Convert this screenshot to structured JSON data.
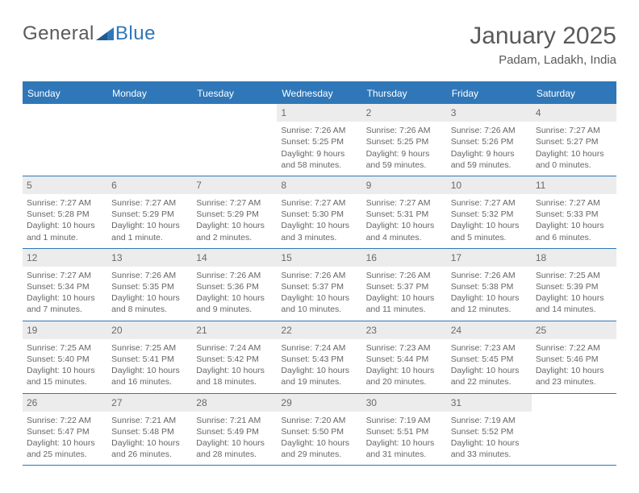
{
  "logo": {
    "text1": "General",
    "text2": "Blue"
  },
  "title": "January 2025",
  "location": "Padam, Ladakh, India",
  "colors": {
    "accent": "#2f77b8",
    "header_text": "#ffffff",
    "daynum_bg": "#ececec",
    "body_text": "#666666",
    "background": "#ffffff"
  },
  "typography": {
    "title_fontsize": 30,
    "location_fontsize": 15,
    "dayhdr_fontsize": 12,
    "cell_fontsize": 10.5
  },
  "day_headers": [
    "Sunday",
    "Monday",
    "Tuesday",
    "Wednesday",
    "Thursday",
    "Friday",
    "Saturday"
  ],
  "weeks": [
    [
      {
        "n": "",
        "empty": true
      },
      {
        "n": "",
        "empty": true
      },
      {
        "n": "",
        "empty": true
      },
      {
        "n": "1",
        "sr": "Sunrise: 7:26 AM",
        "ss": "Sunset: 5:25 PM",
        "d1": "Daylight: 9 hours",
        "d2": "and 58 minutes."
      },
      {
        "n": "2",
        "sr": "Sunrise: 7:26 AM",
        "ss": "Sunset: 5:25 PM",
        "d1": "Daylight: 9 hours",
        "d2": "and 59 minutes."
      },
      {
        "n": "3",
        "sr": "Sunrise: 7:26 AM",
        "ss": "Sunset: 5:26 PM",
        "d1": "Daylight: 9 hours",
        "d2": "and 59 minutes."
      },
      {
        "n": "4",
        "sr": "Sunrise: 7:27 AM",
        "ss": "Sunset: 5:27 PM",
        "d1": "Daylight: 10 hours",
        "d2": "and 0 minutes."
      }
    ],
    [
      {
        "n": "5",
        "sr": "Sunrise: 7:27 AM",
        "ss": "Sunset: 5:28 PM",
        "d1": "Daylight: 10 hours",
        "d2": "and 1 minute."
      },
      {
        "n": "6",
        "sr": "Sunrise: 7:27 AM",
        "ss": "Sunset: 5:29 PM",
        "d1": "Daylight: 10 hours",
        "d2": "and 1 minute."
      },
      {
        "n": "7",
        "sr": "Sunrise: 7:27 AM",
        "ss": "Sunset: 5:29 PM",
        "d1": "Daylight: 10 hours",
        "d2": "and 2 minutes."
      },
      {
        "n": "8",
        "sr": "Sunrise: 7:27 AM",
        "ss": "Sunset: 5:30 PM",
        "d1": "Daylight: 10 hours",
        "d2": "and 3 minutes."
      },
      {
        "n": "9",
        "sr": "Sunrise: 7:27 AM",
        "ss": "Sunset: 5:31 PM",
        "d1": "Daylight: 10 hours",
        "d2": "and 4 minutes."
      },
      {
        "n": "10",
        "sr": "Sunrise: 7:27 AM",
        "ss": "Sunset: 5:32 PM",
        "d1": "Daylight: 10 hours",
        "d2": "and 5 minutes."
      },
      {
        "n": "11",
        "sr": "Sunrise: 7:27 AM",
        "ss": "Sunset: 5:33 PM",
        "d1": "Daylight: 10 hours",
        "d2": "and 6 minutes."
      }
    ],
    [
      {
        "n": "12",
        "sr": "Sunrise: 7:27 AM",
        "ss": "Sunset: 5:34 PM",
        "d1": "Daylight: 10 hours",
        "d2": "and 7 minutes."
      },
      {
        "n": "13",
        "sr": "Sunrise: 7:26 AM",
        "ss": "Sunset: 5:35 PM",
        "d1": "Daylight: 10 hours",
        "d2": "and 8 minutes."
      },
      {
        "n": "14",
        "sr": "Sunrise: 7:26 AM",
        "ss": "Sunset: 5:36 PM",
        "d1": "Daylight: 10 hours",
        "d2": "and 9 minutes."
      },
      {
        "n": "15",
        "sr": "Sunrise: 7:26 AM",
        "ss": "Sunset: 5:37 PM",
        "d1": "Daylight: 10 hours",
        "d2": "and 10 minutes."
      },
      {
        "n": "16",
        "sr": "Sunrise: 7:26 AM",
        "ss": "Sunset: 5:37 PM",
        "d1": "Daylight: 10 hours",
        "d2": "and 11 minutes."
      },
      {
        "n": "17",
        "sr": "Sunrise: 7:26 AM",
        "ss": "Sunset: 5:38 PM",
        "d1": "Daylight: 10 hours",
        "d2": "and 12 minutes."
      },
      {
        "n": "18",
        "sr": "Sunrise: 7:25 AM",
        "ss": "Sunset: 5:39 PM",
        "d1": "Daylight: 10 hours",
        "d2": "and 14 minutes."
      }
    ],
    [
      {
        "n": "19",
        "sr": "Sunrise: 7:25 AM",
        "ss": "Sunset: 5:40 PM",
        "d1": "Daylight: 10 hours",
        "d2": "and 15 minutes."
      },
      {
        "n": "20",
        "sr": "Sunrise: 7:25 AM",
        "ss": "Sunset: 5:41 PM",
        "d1": "Daylight: 10 hours",
        "d2": "and 16 minutes."
      },
      {
        "n": "21",
        "sr": "Sunrise: 7:24 AM",
        "ss": "Sunset: 5:42 PM",
        "d1": "Daylight: 10 hours",
        "d2": "and 18 minutes."
      },
      {
        "n": "22",
        "sr": "Sunrise: 7:24 AM",
        "ss": "Sunset: 5:43 PM",
        "d1": "Daylight: 10 hours",
        "d2": "and 19 minutes."
      },
      {
        "n": "23",
        "sr": "Sunrise: 7:23 AM",
        "ss": "Sunset: 5:44 PM",
        "d1": "Daylight: 10 hours",
        "d2": "and 20 minutes."
      },
      {
        "n": "24",
        "sr": "Sunrise: 7:23 AM",
        "ss": "Sunset: 5:45 PM",
        "d1": "Daylight: 10 hours",
        "d2": "and 22 minutes."
      },
      {
        "n": "25",
        "sr": "Sunrise: 7:22 AM",
        "ss": "Sunset: 5:46 PM",
        "d1": "Daylight: 10 hours",
        "d2": "and 23 minutes."
      }
    ],
    [
      {
        "n": "26",
        "sr": "Sunrise: 7:22 AM",
        "ss": "Sunset: 5:47 PM",
        "d1": "Daylight: 10 hours",
        "d2": "and 25 minutes."
      },
      {
        "n": "27",
        "sr": "Sunrise: 7:21 AM",
        "ss": "Sunset: 5:48 PM",
        "d1": "Daylight: 10 hours",
        "d2": "and 26 minutes."
      },
      {
        "n": "28",
        "sr": "Sunrise: 7:21 AM",
        "ss": "Sunset: 5:49 PM",
        "d1": "Daylight: 10 hours",
        "d2": "and 28 minutes."
      },
      {
        "n": "29",
        "sr": "Sunrise: 7:20 AM",
        "ss": "Sunset: 5:50 PM",
        "d1": "Daylight: 10 hours",
        "d2": "and 29 minutes."
      },
      {
        "n": "30",
        "sr": "Sunrise: 7:19 AM",
        "ss": "Sunset: 5:51 PM",
        "d1": "Daylight: 10 hours",
        "d2": "and 31 minutes."
      },
      {
        "n": "31",
        "sr": "Sunrise: 7:19 AM",
        "ss": "Sunset: 5:52 PM",
        "d1": "Daylight: 10 hours",
        "d2": "and 33 minutes."
      },
      {
        "n": "",
        "empty": true
      }
    ]
  ]
}
